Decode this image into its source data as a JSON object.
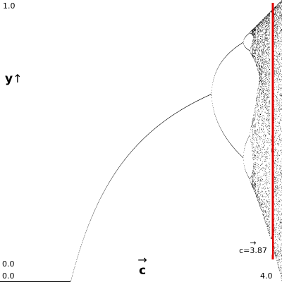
{
  "chart_data": {
    "type": "scatter",
    "subtype": "bifurcation-diagram",
    "xlabel": "c",
    "ylabel": "y",
    "xlabel_arrow": "→",
    "ylabel_arrow": "↑",
    "xlim": [
      0.0,
      4.0
    ],
    "ylim": [
      0.0,
      1.0
    ],
    "ticks": {
      "x_min_label": "0.0",
      "x_max_label": "4.0",
      "y_min_label": "0.0",
      "y_max_label": "1.0"
    },
    "map": "y_next = c * y * (1 - y)",
    "visible_c_range": [
      1.0,
      4.0
    ],
    "marker": {
      "c": 3.87,
      "label": "c=3.87",
      "label_arrow": "→",
      "color": "#e00000"
    },
    "grid": false,
    "point_color": "#000000"
  }
}
